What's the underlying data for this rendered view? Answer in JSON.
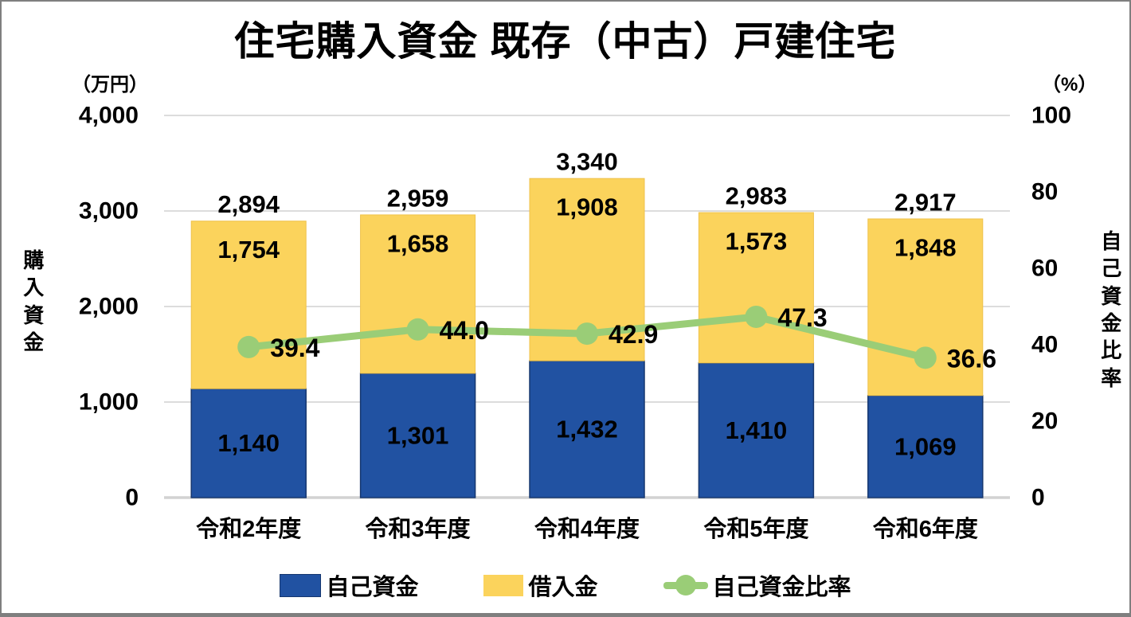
{
  "chart_data": {
    "type": "bar",
    "subtype": "stacked-bars-with-line",
    "title": "住宅購入資金 既存（中古）戸建住宅",
    "categories": [
      "令和2年度",
      "令和3年度",
      "令和4年度",
      "令和5年度",
      "令和6年度"
    ],
    "series": [
      {
        "name": "自己資金",
        "type": "bar",
        "stack": "total",
        "color": "#2152A2",
        "border_color": "#16376F",
        "values": [
          1140,
          1301,
          1432,
          1410,
          1069
        ],
        "labels": [
          "1,140",
          "1,301",
          "1,432",
          "1,410",
          "1,069"
        ],
        "label_color": "#ffffff"
      },
      {
        "name": "借入金",
        "type": "bar",
        "stack": "total",
        "color": "#FBD35C",
        "border_color": "#EFC24B",
        "values": [
          1754,
          1658,
          1908,
          1573,
          1848
        ],
        "labels": [
          "1,754",
          "1,658",
          "1,908",
          "1,573",
          "1,848"
        ],
        "label_color": "#000000"
      },
      {
        "name": "自己資金比率",
        "type": "line",
        "axis": "right",
        "color": "#9ACD77",
        "values": [
          39.4,
          44.0,
          42.9,
          47.3,
          36.6
        ],
        "labels": [
          "39.4",
          "44.0",
          "42.9",
          "47.3",
          "36.6"
        ],
        "label_color": "#000000"
      }
    ],
    "totals": {
      "values": [
        2894,
        2959,
        3340,
        2983,
        2917
      ],
      "labels": [
        "2,894",
        "2,959",
        "3,340",
        "2,983",
        "2,917"
      ]
    },
    "left_axis": {
      "title": "購入資金",
      "unit": "（万円）",
      "min": 0,
      "max": 4000,
      "step": 1000,
      "ticks": [
        "4,000",
        "3,000",
        "2,000",
        "1,000",
        "0"
      ]
    },
    "right_axis": {
      "title": "自己資金比率",
      "unit": "（%）",
      "min": 0,
      "max": 100,
      "step": 20,
      "ticks": [
        "100",
        "80",
        "60",
        "40",
        "20",
        "0"
      ]
    },
    "grid": {
      "on": true,
      "color": "#DCDCDC",
      "baseline_color": "#D2D2D2"
    },
    "legend_position": "bottom"
  }
}
